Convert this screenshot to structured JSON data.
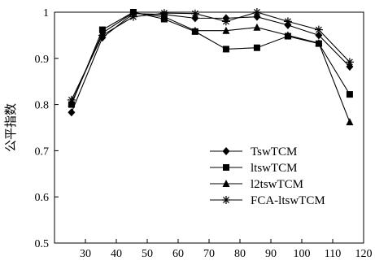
{
  "chart_data": {
    "type": "line",
    "title": "",
    "xlabel": "",
    "ylabel": "公平指数",
    "xlim": [
      20,
      120
    ],
    "ylim": [
      0.5,
      1.0
    ],
    "xticks": [
      30,
      40,
      50,
      60,
      70,
      80,
      90,
      100,
      110,
      120
    ],
    "yticks": [
      0.5,
      0.6,
      0.7,
      0.8,
      0.9,
      1.0
    ],
    "ytick_labels": [
      "0.5",
      "0.6",
      "0.7",
      "0.8",
      "0.9",
      "1"
    ],
    "grid": false,
    "legend_position": "bottom-right",
    "x": [
      25.5,
      35.5,
      45.5,
      55.5,
      65.5,
      75.5,
      85.5,
      95.5,
      105.5,
      115.5
    ],
    "series": [
      {
        "name": "TswTCM",
        "marker": "diamond",
        "values": [
          0.783,
          0.945,
          0.997,
          0.995,
          0.987,
          0.987,
          0.99,
          0.972,
          0.95,
          0.882
        ]
      },
      {
        "name": "ltswTCM",
        "marker": "square",
        "values": [
          0.8,
          0.962,
          1.0,
          0.985,
          0.958,
          0.92,
          0.923,
          0.948,
          0.932,
          0.822
        ]
      },
      {
        "name": "l2tswTCM",
        "marker": "triangle",
        "values": [
          0.803,
          0.955,
          0.999,
          0.99,
          0.96,
          0.96,
          0.967,
          0.95,
          0.933,
          0.762
        ]
      },
      {
        "name": "FCA-ltswTCM",
        "marker": "star",
        "values": [
          0.81,
          0.95,
          0.99,
          0.998,
          0.997,
          0.98,
          1.0,
          0.98,
          0.962,
          0.892
        ]
      }
    ]
  }
}
